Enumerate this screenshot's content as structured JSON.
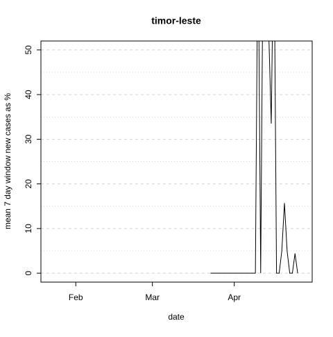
{
  "chart_data": {
    "type": "line",
    "title": "timor-leste",
    "xlabel": "date",
    "ylabel": "mean  7  day window new cases as %",
    "x": [
      83,
      84,
      85,
      86,
      87,
      88,
      89,
      90,
      91,
      92,
      93,
      94,
      95,
      96,
      97,
      98,
      99,
      100,
      101,
      102,
      103,
      104,
      105,
      106,
      107,
      108,
      109,
      110,
      111,
      112,
      113,
      114,
      115,
      116
    ],
    "series": [
      {
        "color": "#000000",
        "values": [
          0,
          0,
          0,
          0,
          0,
          0,
          0,
          0,
          0,
          0,
          0,
          0,
          0,
          0,
          0,
          0,
          0,
          0,
          80,
          0,
          80,
          80,
          55,
          33.5,
          80,
          0,
          0,
          5,
          15.7,
          5,
          0,
          0,
          4.4,
          0
        ]
      }
    ],
    "xlim": [
      18.8,
      121.5
    ],
    "xticks": [
      {
        "value": 32,
        "label": "Feb"
      },
      {
        "value": 61,
        "label": "Mar"
      },
      {
        "value": 92,
        "label": "Apr"
      }
    ],
    "ylim": [
      -2,
      52
    ],
    "yticks": [
      0,
      10,
      20,
      30,
      40,
      50
    ],
    "minor_grid": [
      5,
      15,
      25,
      35,
      45
    ],
    "grid": true
  }
}
